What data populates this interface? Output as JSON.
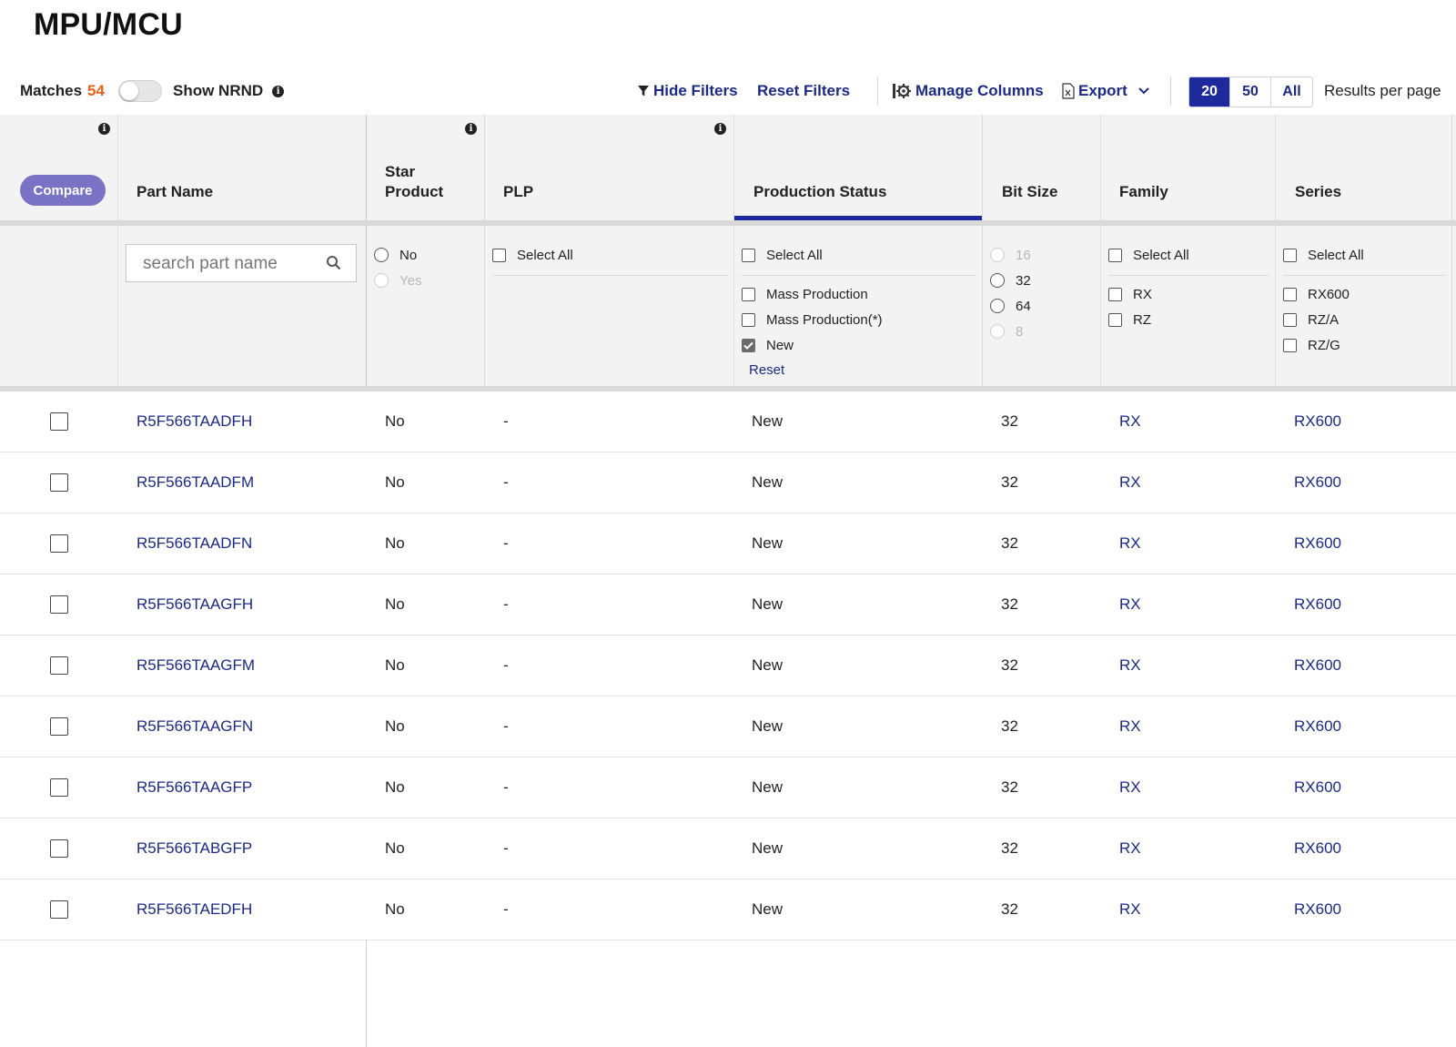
{
  "page": {
    "title": "MPU/MCU"
  },
  "toolbar": {
    "matches_label": "Matches",
    "matches_count": "54",
    "show_nrnd_label": "Show NRND",
    "show_nrnd_on": false,
    "hide_filters": "Hide Filters",
    "reset_filters": "Reset Filters",
    "manage_columns": "Manage Columns",
    "export": "Export",
    "page_sizes": [
      "20",
      "50",
      "All"
    ],
    "active_page_size": "20",
    "results_per_page": "Results per page"
  },
  "columns": {
    "compare": "Compare",
    "part_name": "Part Name",
    "star_product_line1": "Star",
    "star_product_line2": "Product",
    "plp": "PLP",
    "production_status": "Production Status",
    "bit_size": "Bit Size",
    "family": "Family",
    "series": "Series"
  },
  "filters": {
    "search_placeholder": "search part name",
    "star_product": [
      {
        "label": "No",
        "enabled": true
      },
      {
        "label": "Yes",
        "enabled": false
      }
    ],
    "plp": {
      "select_all": "Select All"
    },
    "production_status": {
      "select_all": "Select All",
      "options": [
        {
          "label": "Mass Production",
          "checked": false
        },
        {
          "label": "Mass Production(*)",
          "checked": false
        },
        {
          "label": "New",
          "checked": true
        }
      ],
      "reset": "Reset"
    },
    "bit_size": [
      {
        "label": "16",
        "enabled": false
      },
      {
        "label": "32",
        "enabled": true
      },
      {
        "label": "64",
        "enabled": true
      },
      {
        "label": "8",
        "enabled": false
      }
    ],
    "family": {
      "select_all": "Select All",
      "options": [
        "RX",
        "RZ"
      ]
    },
    "series": {
      "select_all": "Select All",
      "options": [
        "RX600",
        "RZ/A",
        "RZ/G"
      ]
    }
  },
  "rows": [
    {
      "part": "R5F566TAADFH",
      "star": "No",
      "plp": "-",
      "status": "New",
      "bits": "32",
      "family": "RX",
      "series": "RX600"
    },
    {
      "part": "R5F566TAADFM",
      "star": "No",
      "plp": "-",
      "status": "New",
      "bits": "32",
      "family": "RX",
      "series": "RX600"
    },
    {
      "part": "R5F566TAADFN",
      "star": "No",
      "plp": "-",
      "status": "New",
      "bits": "32",
      "family": "RX",
      "series": "RX600"
    },
    {
      "part": "R5F566TAAGFH",
      "star": "No",
      "plp": "-",
      "status": "New",
      "bits": "32",
      "family": "RX",
      "series": "RX600"
    },
    {
      "part": "R5F566TAAGFM",
      "star": "No",
      "plp": "-",
      "status": "New",
      "bits": "32",
      "family": "RX",
      "series": "RX600"
    },
    {
      "part": "R5F566TAAGFN",
      "star": "No",
      "plp": "-",
      "status": "New",
      "bits": "32",
      "family": "RX",
      "series": "RX600"
    },
    {
      "part": "R5F566TAAGFP",
      "star": "No",
      "plp": "-",
      "status": "New",
      "bits": "32",
      "family": "RX",
      "series": "RX600"
    },
    {
      "part": "R5F566TABGFP",
      "star": "No",
      "plp": "-",
      "status": "New",
      "bits": "32",
      "family": "RX",
      "series": "RX600"
    },
    {
      "part": "R5F566TAEDFH",
      "star": "No",
      "plp": "-",
      "status": "New",
      "bits": "32",
      "family": "RX",
      "series": "RX600"
    }
  ],
  "colors": {
    "accent": "#1c2a9b",
    "link": "#1c2a80",
    "count": "#e8611a",
    "compare": "#7a72c4"
  }
}
